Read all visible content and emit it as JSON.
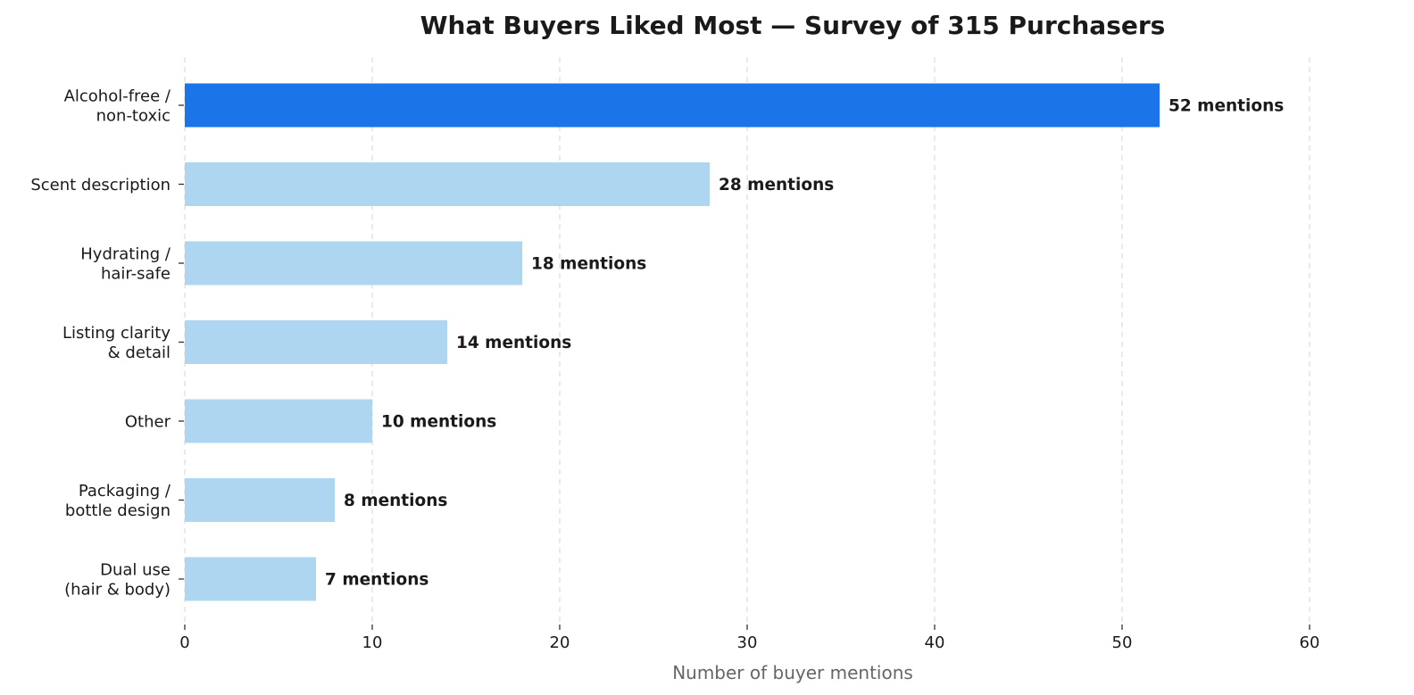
{
  "chart_data": {
    "type": "bar",
    "orientation": "horizontal",
    "title": "What Buyers Liked Most — Survey of 315 Purchasers",
    "xlabel": "Number of buyer mentions",
    "ylabel": "",
    "xlim": [
      0,
      60
    ],
    "x_ticks": [
      0,
      10,
      20,
      30,
      40,
      50,
      60
    ],
    "grid": "x-dashed",
    "categories": [
      [
        "Alcohol-free /",
        "non-toxic"
      ],
      [
        "Scent description"
      ],
      [
        "Hydrating /",
        "hair-safe"
      ],
      [
        "Listing clarity",
        "& detail"
      ],
      [
        "Other"
      ],
      [
        "Packaging /",
        "bottle design"
      ],
      [
        "Dual use",
        "(hair & body)"
      ]
    ],
    "values": [
      52,
      28,
      18,
      14,
      10,
      8,
      7
    ],
    "value_labels": [
      "52 mentions",
      "28 mentions",
      "18 mentions",
      "14 mentions",
      "10 mentions",
      "8 mentions",
      "7 mentions"
    ],
    "highlight_index": 0,
    "colors": {
      "highlight": "#1c75e8",
      "default": "#aed6f0",
      "grid": "#dedede",
      "text": "#1a1a1a",
      "axis_label": "#666666"
    }
  }
}
